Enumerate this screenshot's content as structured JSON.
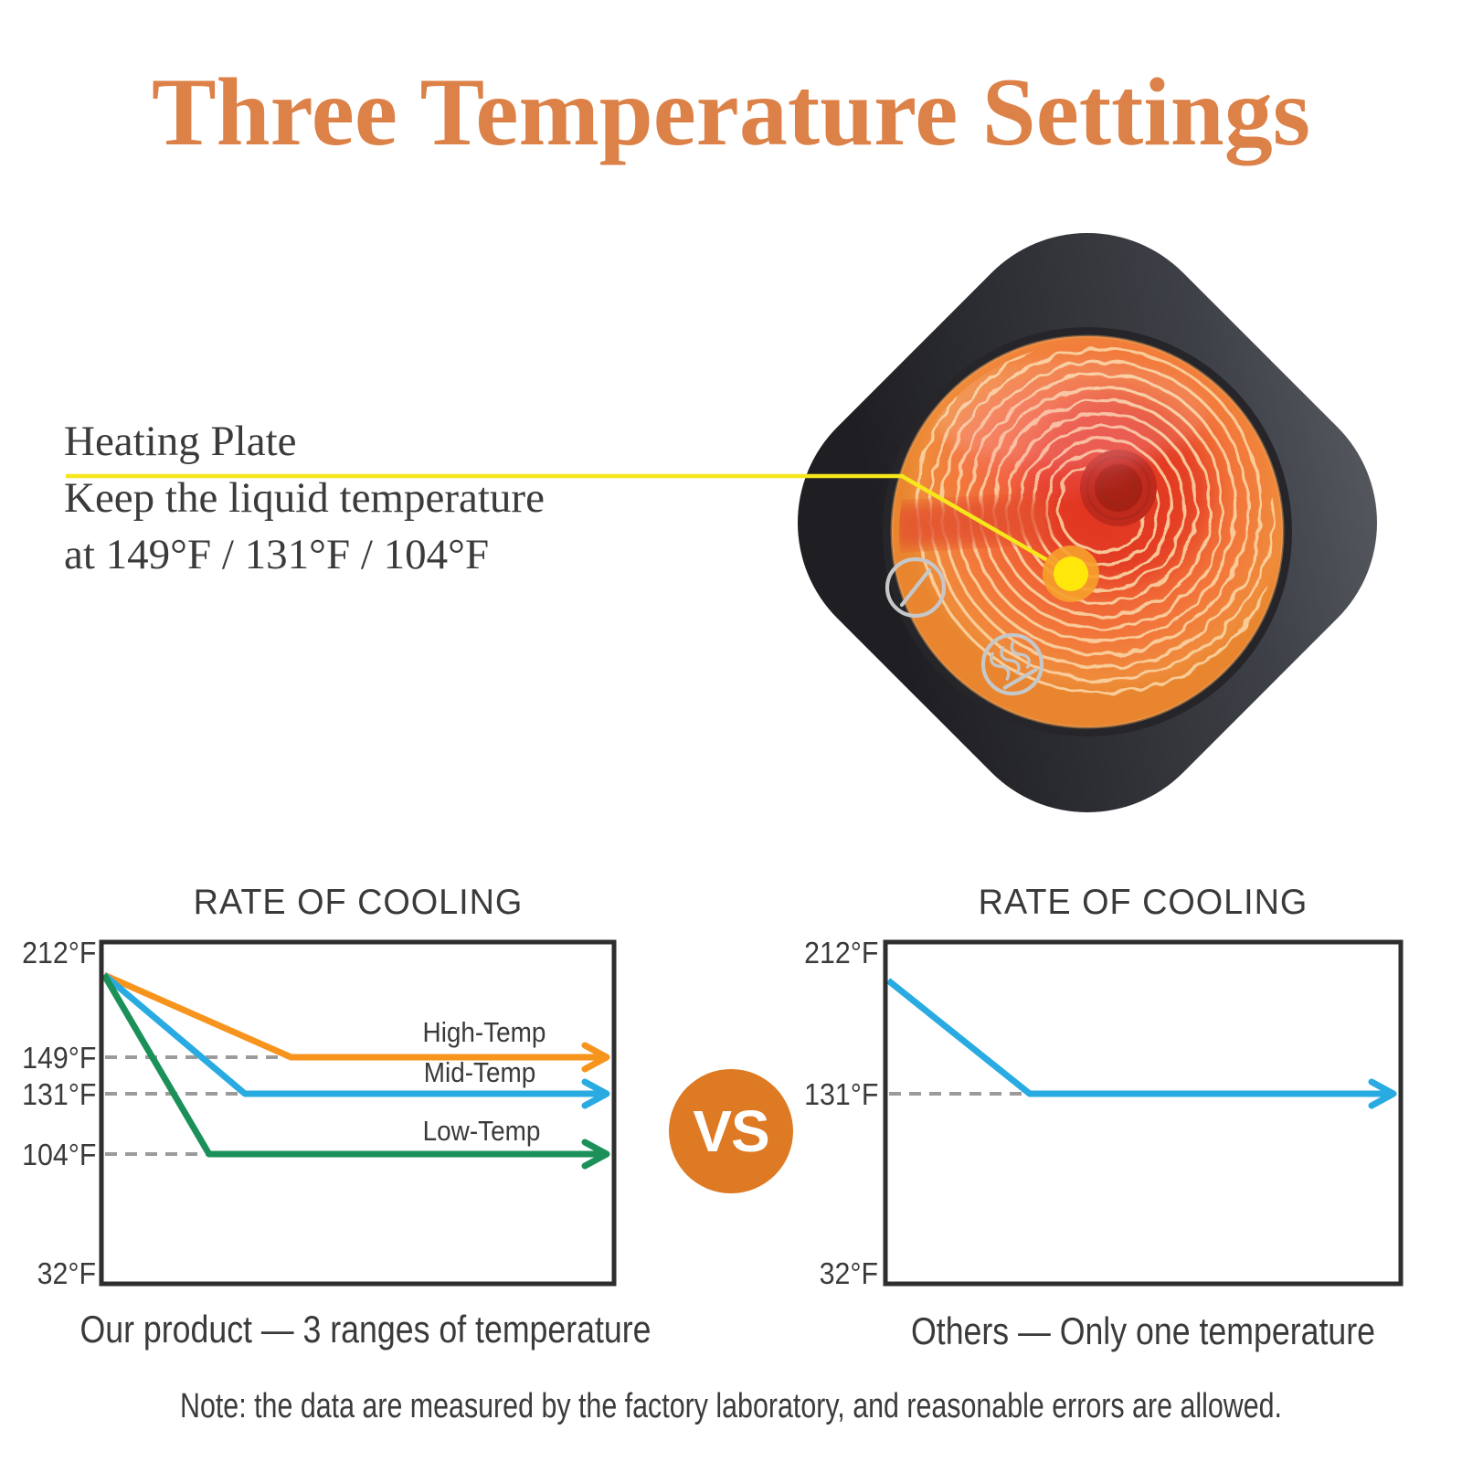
{
  "title": {
    "text": "Three Temperature Settings",
    "color": "#DC8147"
  },
  "callout": {
    "lines": [
      "Heating Plate",
      "Keep the liquid temperature",
      "at 149°F / 131°F / 104°F"
    ],
    "pointer_color": "#F6E71C"
  },
  "product": {
    "description": "mug warmer with glowing circular heating plate",
    "body_color": "#2A2C30",
    "plate_glow_colors": [
      "#E6402B",
      "#F2773B",
      "#EF8C3B"
    ],
    "indicator_dot_color": "#FFE70B",
    "icons": [
      {
        "name": "power-icon"
      },
      {
        "name": "heat-icon"
      }
    ]
  },
  "vs_badge": {
    "label": "VS",
    "bg_color": "#DD7A23",
    "text_color": "#FFFFFF"
  },
  "chart_data": [
    {
      "type": "line",
      "title": "RATE OF COOLING",
      "ylim": [
        32,
        212
      ],
      "yticks": [
        {
          "label": "212°F",
          "temp": 212
        },
        {
          "label": "149°F",
          "temp": 149
        },
        {
          "label": "131°F",
          "temp": 131
        },
        {
          "label": "104°F",
          "temp": 104
        },
        {
          "label": "32°F",
          "temp": 32
        }
      ],
      "grid": "dashed gray guide lines at the hold temperatures",
      "legend_position": "labels above lines, right side",
      "series": [
        {
          "name": "High-Temp",
          "color": "#F7941E",
          "start_temp": 200,
          "flat_temp": 149,
          "bend_frac": 0.37
        },
        {
          "name": "Mid-Temp",
          "color": "#29ABE2",
          "start_temp": 200,
          "flat_temp": 131,
          "bend_frac": 0.28
        },
        {
          "name": "Low-Temp",
          "color": "#1B9159",
          "start_temp": 200,
          "flat_temp": 104,
          "bend_frac": 0.21
        }
      ],
      "caption": "Our product — 3 ranges of temperature"
    },
    {
      "type": "line",
      "title": "RATE OF COOLING",
      "ylim": [
        32,
        212
      ],
      "yticks": [
        {
          "label": "212°F",
          "temp": 212
        },
        {
          "label": "131°F",
          "temp": 131
        },
        {
          "label": "32°F",
          "temp": 32
        }
      ],
      "grid": "dashed gray guide line at 131°F",
      "legend_position": "none",
      "series": [
        {
          "name": "",
          "color": "#29ABE2",
          "start_temp": 198,
          "flat_temp": 131,
          "bend_frac": 0.28
        }
      ],
      "caption": "Others — Only one temperature"
    }
  ],
  "note": "Note: the data are measured by the factory laboratory, and reasonable errors are allowed."
}
